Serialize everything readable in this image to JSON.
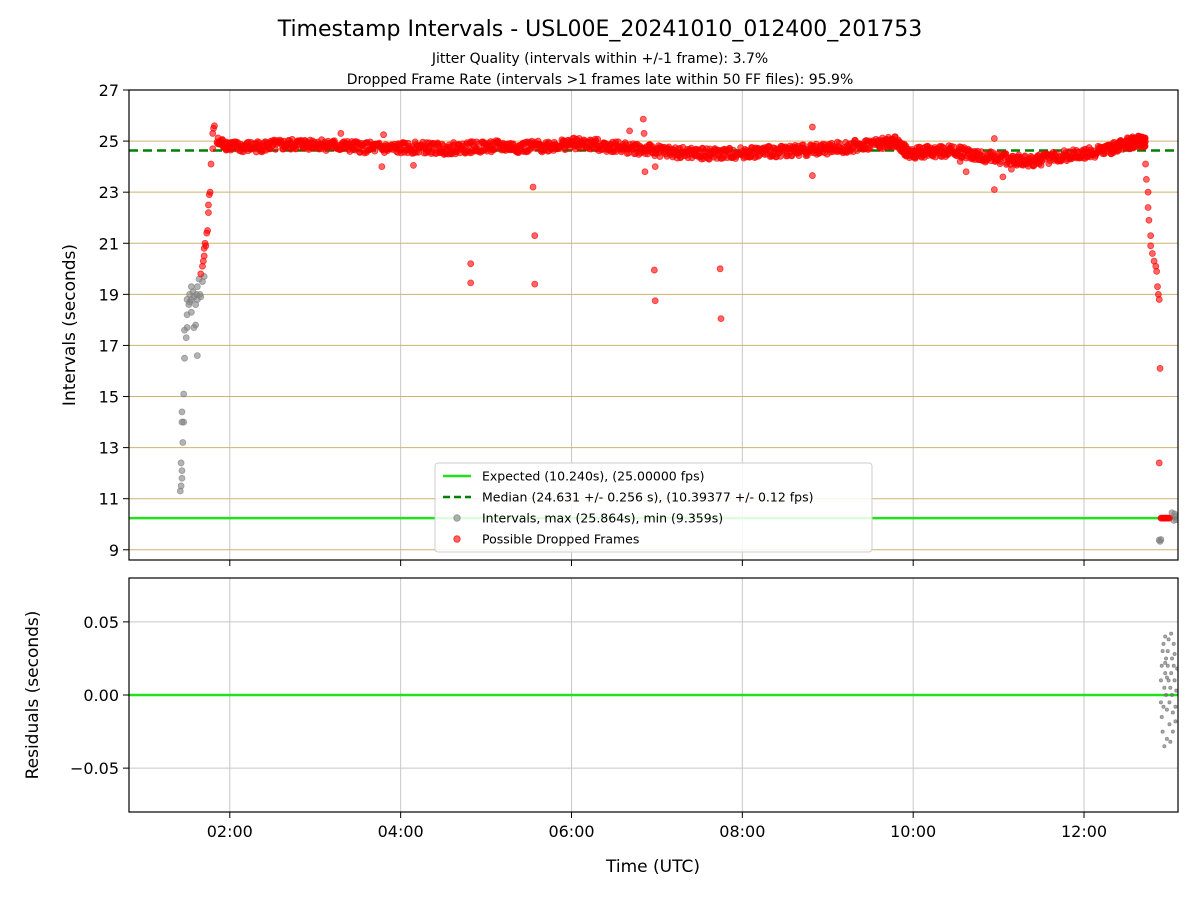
{
  "figure": {
    "title": "Timestamp Intervals - USL00E_20241010_012400_201753",
    "subtitle_line1": "Jitter Quality (intervals within +/-1 frame): 3.7%",
    "subtitle_line2": "Dropped Frame Rate (intervals >1 frames late within 50 FF files): 95.9%"
  },
  "colors": {
    "expected_line": "#22e01e",
    "median_line": "#008000",
    "dropped_points": "#ff0000",
    "interval_points": "#808080",
    "hgrid": "#cdb36b",
    "vgrid": "#c8c8c8"
  },
  "chart_data": [
    {
      "type": "scatter",
      "title": "",
      "xlabel": "",
      "ylabel": "Intervals (seconds)",
      "x_unit": "hours UTC",
      "xlim": [
        0.82,
        13.1
      ],
      "ylim": [
        8.6,
        27
      ],
      "x_ticks": [
        {
          "value": 2,
          "label": "02:00"
        },
        {
          "value": 4,
          "label": "04:00"
        },
        {
          "value": 6,
          "label": "06:00"
        },
        {
          "value": 8,
          "label": "08:00"
        },
        {
          "value": 10,
          "label": "10:00"
        },
        {
          "value": 12,
          "label": "12:00"
        }
      ],
      "y_ticks": [
        {
          "value": 9,
          "label": "9"
        },
        {
          "value": 11,
          "label": "11"
        },
        {
          "value": 13,
          "label": "13"
        },
        {
          "value": 15,
          "label": "15"
        },
        {
          "value": 17,
          "label": "17"
        },
        {
          "value": 19,
          "label": "19"
        },
        {
          "value": 21,
          "label": "21"
        },
        {
          "value": 23,
          "label": "23"
        },
        {
          "value": 25,
          "label": "25"
        },
        {
          "value": 27,
          "label": "27"
        }
      ],
      "grid": true,
      "legend_placement": "lower-center",
      "lines": [
        {
          "name": "Expected (10.240s), (25.00000 fps)",
          "y": 10.24,
          "style": "solid",
          "color": "#22e01e"
        },
        {
          "name": "Median (24.631 +/- 0.256 s), (10.39377 +/- 0.12 fps)",
          "y": 24.631,
          "style": "dashed",
          "color": "#008000"
        }
      ],
      "series": [
        {
          "name": "Intervals, max (25.864s), min (9.359s)",
          "color": "#808080",
          "points": [
            [
              1.42,
              11.3
            ],
            [
              1.43,
              11.5
            ],
            [
              1.44,
              11.8
            ],
            [
              1.44,
              12.1
            ],
            [
              1.43,
              12.4
            ],
            [
              1.45,
              13.2
            ],
            [
              1.44,
              14.0
            ],
            [
              1.46,
              14.0
            ],
            [
              1.44,
              14.4
            ],
            [
              1.46,
              15.1
            ],
            [
              1.47,
              16.5
            ],
            [
              1.49,
              17.3
            ],
            [
              1.47,
              17.6
            ],
            [
              1.5,
              17.7
            ],
            [
              1.62,
              16.6
            ],
            [
              1.58,
              17.7
            ],
            [
              1.6,
              17.8
            ],
            [
              1.5,
              18.2
            ],
            [
              1.55,
              18.3
            ],
            [
              1.52,
              18.6
            ],
            [
              1.5,
              18.8
            ],
            [
              1.55,
              18.8
            ],
            [
              1.58,
              18.9
            ],
            [
              1.62,
              18.8
            ],
            [
              1.53,
              19.0
            ],
            [
              1.57,
              19.1
            ],
            [
              1.61,
              19.0
            ],
            [
              1.65,
              19.0
            ],
            [
              1.55,
              19.3
            ],
            [
              1.62,
              19.3
            ],
            [
              1.68,
              19.5
            ],
            [
              1.64,
              19.6
            ],
            [
              1.7,
              19.7
            ],
            [
              1.53,
              18.7
            ],
            [
              1.6,
              18.6
            ],
            [
              1.66,
              18.9
            ],
            [
              12.88,
              9.38
            ],
            [
              12.89,
              9.33
            ],
            [
              12.9,
              9.4
            ],
            [
              13.05,
              10.15
            ],
            [
              13.07,
              10.3
            ],
            [
              13.03,
              10.45
            ],
            [
              13.08,
              10.18
            ],
            [
              13.06,
              10.4
            ]
          ]
        },
        {
          "name": "Possible Dropped Frames",
          "color": "#ff0000",
          "points": [
            [
              1.66,
              19.8
            ],
            [
              1.68,
              20.1
            ],
            [
              1.69,
              20.3
            ],
            [
              1.7,
              20.5
            ],
            [
              1.7,
              20.8
            ],
            [
              1.71,
              21.0
            ],
            [
              1.72,
              20.9
            ],
            [
              1.73,
              21.4
            ],
            [
              1.74,
              21.5
            ],
            [
              1.75,
              22.2
            ],
            [
              1.75,
              22.5
            ],
            [
              1.76,
              22.9
            ],
            [
              1.77,
              23.0
            ],
            [
              1.78,
              24.1
            ],
            [
              1.8,
              24.7
            ],
            [
              1.8,
              25.3
            ],
            [
              1.81,
              25.5
            ],
            [
              1.82,
              25.6
            ],
            [
              3.3,
              25.3
            ],
            [
              3.8,
              25.25
            ],
            [
              3.78,
              24.0
            ],
            [
              4.15,
              24.05
            ],
            [
              4.82,
              20.2
            ],
            [
              4.82,
              19.45
            ],
            [
              5.55,
              23.2
            ],
            [
              5.57,
              21.3
            ],
            [
              5.57,
              19.4
            ],
            [
              6.68,
              25.4
            ],
            [
              6.84,
              25.86
            ],
            [
              6.85,
              25.3
            ],
            [
              6.86,
              23.8
            ],
            [
              6.97,
              19.95
            ],
            [
              6.98,
              18.75
            ],
            [
              6.98,
              24.0
            ],
            [
              7.74,
              20.0
            ],
            [
              7.75,
              18.05
            ],
            [
              8.82,
              25.55
            ],
            [
              8.82,
              23.65
            ],
            [
              10.55,
              24.2
            ],
            [
              10.62,
              23.8
            ],
            [
              10.95,
              23.1
            ],
            [
              10.95,
              25.1
            ],
            [
              11.05,
              23.6
            ],
            [
              11.15,
              23.9
            ],
            [
              12.72,
              24.1
            ],
            [
              12.73,
              23.5
            ],
            [
              12.75,
              23.0
            ],
            [
              12.75,
              22.4
            ],
            [
              12.76,
              21.9
            ],
            [
              12.78,
              21.3
            ],
            [
              12.78,
              20.9
            ],
            [
              12.8,
              20.6
            ],
            [
              12.82,
              20.3
            ],
            [
              12.84,
              20.1
            ],
            [
              12.85,
              19.9
            ],
            [
              12.86,
              19.3
            ],
            [
              12.87,
              19.0
            ],
            [
              12.88,
              18.8
            ],
            [
              12.89,
              16.1
            ],
            [
              12.88,
              12.4
            ],
            [
              12.9,
              10.24
            ],
            [
              12.91,
              10.24
            ],
            [
              12.92,
              10.24
            ],
            [
              12.93,
              10.24
            ],
            [
              12.94,
              10.24
            ],
            [
              12.95,
              10.24
            ],
            [
              12.96,
              10.24
            ],
            [
              12.97,
              10.24
            ],
            [
              12.98,
              10.24
            ],
            [
              12.99,
              10.24
            ],
            [
              13.0,
              10.24
            ]
          ],
          "band": [
            [
              1.85,
              24.95
            ],
            [
              2.1,
              24.75
            ],
            [
              2.4,
              24.8
            ],
            [
              2.7,
              24.85
            ],
            [
              3.0,
              24.9
            ],
            [
              3.3,
              24.8
            ],
            [
              3.6,
              24.75
            ],
            [
              3.9,
              24.7
            ],
            [
              4.2,
              24.75
            ],
            [
              4.5,
              24.7
            ],
            [
              4.8,
              24.75
            ],
            [
              5.1,
              24.8
            ],
            [
              5.4,
              24.75
            ],
            [
              5.7,
              24.8
            ],
            [
              6.0,
              24.9
            ],
            [
              6.3,
              24.85
            ],
            [
              6.6,
              24.75
            ],
            [
              6.9,
              24.65
            ],
            [
              7.2,
              24.55
            ],
            [
              7.5,
              24.5
            ],
            [
              7.8,
              24.5
            ],
            [
              8.1,
              24.55
            ],
            [
              8.4,
              24.6
            ],
            [
              8.7,
              24.65
            ],
            [
              9.0,
              24.7
            ],
            [
              9.3,
              24.8
            ],
            [
              9.6,
              24.9
            ],
            [
              9.8,
              24.95
            ],
            [
              9.95,
              24.5
            ],
            [
              10.2,
              24.6
            ],
            [
              10.5,
              24.6
            ],
            [
              10.8,
              24.4
            ],
            [
              11.1,
              24.3
            ],
            [
              11.4,
              24.2
            ],
            [
              11.7,
              24.4
            ],
            [
              12.0,
              24.5
            ],
            [
              12.3,
              24.7
            ],
            [
              12.5,
              24.9
            ],
            [
              12.65,
              25.0
            ],
            [
              12.72,
              24.9
            ]
          ]
        }
      ]
    },
    {
      "type": "scatter",
      "title": "",
      "xlabel": "Time (UTC)",
      "ylabel": "Residuals (seconds)",
      "x_unit": "hours UTC",
      "xlim": [
        0.82,
        13.1
      ],
      "ylim": [
        -0.08,
        0.08
      ],
      "y_ticks": [
        {
          "value": 0.05,
          "label": "0.05"
        },
        {
          "value": 0.0,
          "label": "0.00"
        },
        {
          "value": -0.05,
          "label": "−0.05"
        }
      ],
      "grid": true,
      "lines": [
        {
          "name": "zero residual",
          "y": 0.0,
          "style": "solid",
          "color": "#22e01e"
        }
      ],
      "series": [
        {
          "name": "",
          "color": "#707070",
          "points": [
            [
              12.9,
              0.01
            ],
            [
              12.91,
              0.02
            ],
            [
              12.9,
              -0.005
            ],
            [
              12.92,
              0.03
            ],
            [
              12.91,
              -0.015
            ],
            [
              12.93,
              0.035
            ],
            [
              12.94,
              0.005
            ],
            [
              12.92,
              -0.025
            ],
            [
              12.95,
              0.015
            ],
            [
              12.94,
              -0.035
            ],
            [
              12.96,
              0.025
            ],
            [
              12.95,
              0.04
            ],
            [
              12.97,
              -0.01
            ],
            [
              12.96,
              0.0
            ],
            [
              12.98,
              0.02
            ],
            [
              12.97,
              -0.03
            ],
            [
              12.99,
              0.01
            ],
            [
              12.98,
              0.03
            ],
            [
              13.0,
              -0.02
            ],
            [
              12.99,
              0.038
            ],
            [
              13.01,
              0.005
            ],
            [
              13.0,
              -0.005
            ],
            [
              13.02,
              0.015
            ],
            [
              13.01,
              -0.032
            ],
            [
              13.03,
              0.025
            ],
            [
              13.02,
              0.042
            ],
            [
              13.04,
              -0.012
            ],
            [
              13.03,
              0.0
            ],
            [
              13.05,
              0.02
            ],
            [
              13.04,
              -0.025
            ],
            [
              13.06,
              0.01
            ],
            [
              13.05,
              0.035
            ],
            [
              13.07,
              -0.018
            ],
            [
              13.06,
              0.028
            ],
            [
              13.08,
              0.003
            ],
            [
              13.07,
              -0.008
            ],
            [
              13.09,
              0.018
            ],
            [
              12.93,
              -0.008
            ],
            [
              12.95,
              0.022
            ],
            [
              12.97,
              0.012
            ]
          ]
        }
      ]
    }
  ],
  "legend": {
    "entries": [
      {
        "label": "Expected (10.240s), (25.00000 fps)",
        "kind": "line",
        "color": "#22e01e"
      },
      {
        "label": "Median (24.631 +/- 0.256 s), (10.39377 +/- 0.12 fps)",
        "kind": "dashed",
        "color": "#008000"
      },
      {
        "label": "Intervals, max (25.864s), min (9.359s)",
        "kind": "marker",
        "color": "#808080"
      },
      {
        "label": "Possible Dropped Frames",
        "kind": "marker",
        "color": "#ff0000"
      }
    ]
  }
}
